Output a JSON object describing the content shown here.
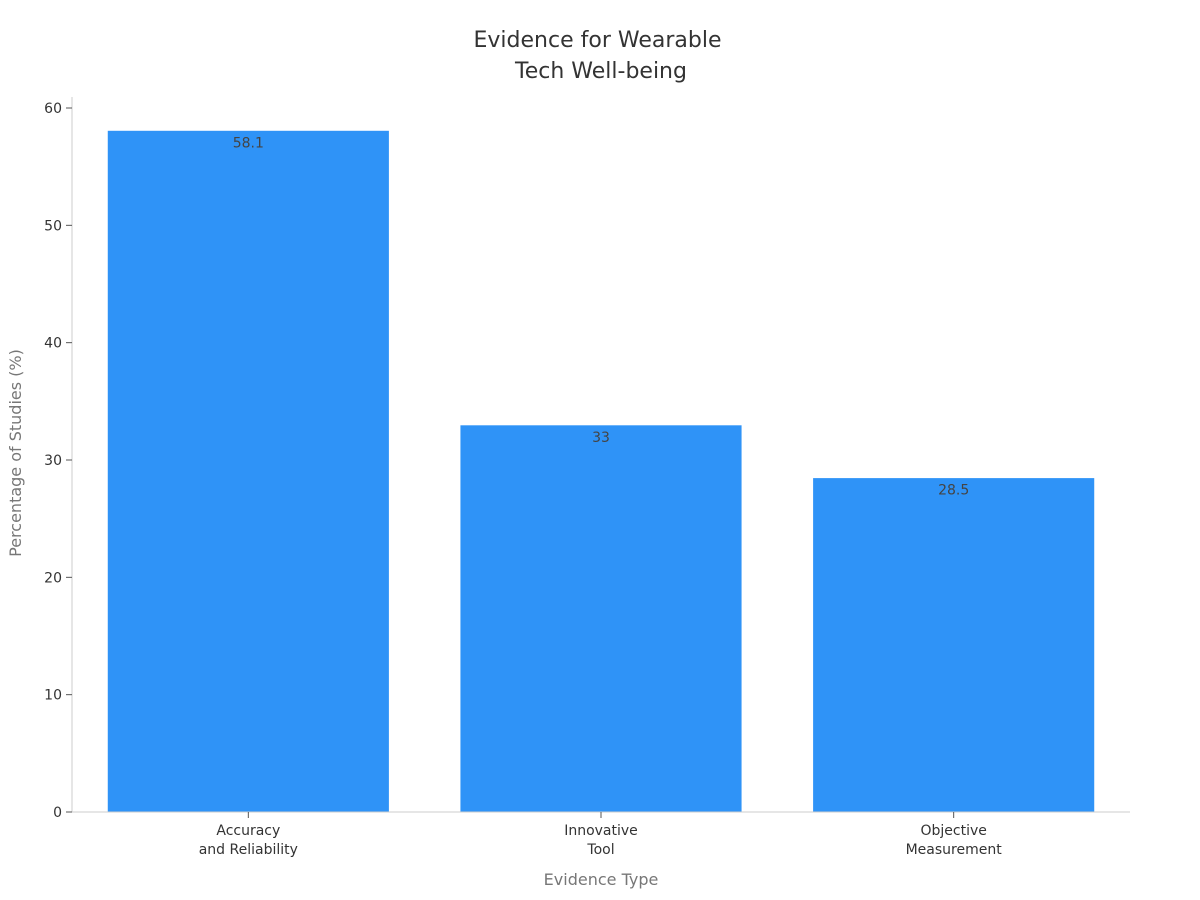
{
  "chart_data": {
    "type": "bar",
    "title": [
      "Evidence for Wearable",
      "Tech Well-being"
    ],
    "xlabel": "Evidence Type",
    "ylabel": "Percentage of Studies (%)",
    "categories": [
      [
        "Accuracy",
        "and Reliability"
      ],
      [
        "Innovative",
        "Tool"
      ],
      [
        "Objective",
        "Measurement"
      ]
    ],
    "values": [
      58.1,
      33,
      28.5
    ],
    "data_labels": [
      "58.1",
      "33",
      "28.5"
    ],
    "ylim": [
      0,
      60
    ],
    "yticks": [
      0,
      10,
      20,
      30,
      40,
      50,
      60
    ],
    "bar_color": "#2f93f7",
    "axis_color": "#cccccc",
    "grid": false,
    "legend": "none"
  }
}
